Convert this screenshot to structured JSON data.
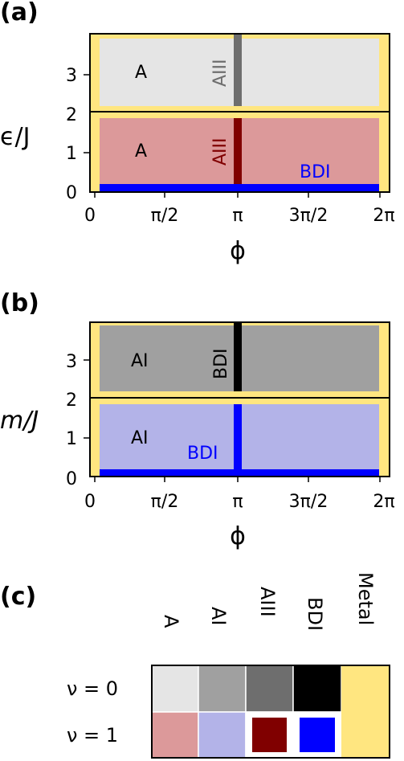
{
  "panels": [
    {
      "label": "(a)",
      "ylabel": "ϵ/J",
      "xlabel": "ϕ",
      "x_ticks": [
        "0",
        "π/2",
        "π",
        "3π/2",
        "2π"
      ],
      "y_ticks_top": [
        "2",
        "3"
      ],
      "y_ticks_bottom": [
        "0",
        "1"
      ],
      "top_region": {
        "label": "A",
        "line_label": "AIII",
        "fill": "#e5e5e5",
        "line_color": "#6e6e6e"
      },
      "bottom_region": {
        "label": "A",
        "line_label": "AIII",
        "edge_label": "BDI",
        "fill": "#dc999a",
        "line_color": "#800000",
        "edge_color": "#0000ff"
      }
    },
    {
      "label": "(b)",
      "ylabel": "m/J",
      "xlabel": "ϕ",
      "x_ticks": [
        "0",
        "π/2",
        "π",
        "3π/2",
        "2π"
      ],
      "y_ticks_top": [
        "2",
        "3"
      ],
      "y_ticks_bottom": [
        "0",
        "1"
      ],
      "top_region": {
        "label": "AI",
        "line_label": "BDI",
        "fill": "#a0a0a0",
        "line_color": "#000000"
      },
      "bottom_region": {
        "label": "AI",
        "edge_label": "BDI",
        "fill": "#b3b3e8",
        "line_color": "#0000ff",
        "edge_color": "#0000ff"
      }
    }
  ],
  "legend": {
    "label": "(c)",
    "columns": [
      "A",
      "AI",
      "AIII",
      "BDI",
      "Metal"
    ],
    "rows": [
      "ν = 0",
      "ν = 1"
    ],
    "colors": {
      "nu0": [
        "#e5e5e5",
        "#a0a0a0",
        "#6e6e6e",
        "#000000",
        "#ffe680"
      ],
      "nu1": [
        "#dc999a",
        "#b3b3e8",
        "#800000",
        "#0000ff",
        "#ffe680"
      ]
    }
  },
  "chart_data": [
    {
      "type": "heatmap",
      "xlabel": "ϕ",
      "ylabel": "ϵ/J",
      "x_ticks": [
        "0",
        "π/2",
        "π",
        "3π/2",
        "2π"
      ],
      "xlim": [
        0,
        6.283
      ],
      "ylim": [
        0,
        4
      ],
      "regions": [
        {
          "name": "A",
          "nu": 0,
          "y": [
            2,
            4
          ]
        },
        {
          "name": "A",
          "nu": 1,
          "y": [
            0,
            2
          ]
        },
        {
          "name": "AIII",
          "nu": 0,
          "x": 3.1416,
          "y": [
            2,
            4
          ]
        },
        {
          "name": "AIII",
          "nu": 1,
          "x": 3.1416,
          "y": [
            0,
            2
          ]
        },
        {
          "name": "BDI",
          "nu": 1,
          "y": 0
        },
        {
          "name": "Metal",
          "x": [
            0,
            6.283
          ],
          "edges": true
        }
      ]
    },
    {
      "type": "heatmap",
      "xlabel": "ϕ",
      "ylabel": "m/J",
      "x_ticks": [
        "0",
        "π/2",
        "π",
        "3π/2",
        "2π"
      ],
      "xlim": [
        0,
        6.283
      ],
      "ylim": [
        0,
        4
      ],
      "regions": [
        {
          "name": "AI",
          "nu": 0,
          "y": [
            2,
            4
          ]
        },
        {
          "name": "AI",
          "nu": 1,
          "y": [
            0,
            2
          ]
        },
        {
          "name": "BDI",
          "nu": 0,
          "x": 3.1416,
          "y": [
            2,
            4
          ]
        },
        {
          "name": "BDI",
          "nu": 1,
          "x": 3.1416,
          "y": [
            0,
            2
          ]
        },
        {
          "name": "BDI",
          "nu": 1,
          "y": 0
        },
        {
          "name": "Metal",
          "x": [
            0,
            6.283
          ],
          "edges": true
        }
      ]
    }
  ]
}
